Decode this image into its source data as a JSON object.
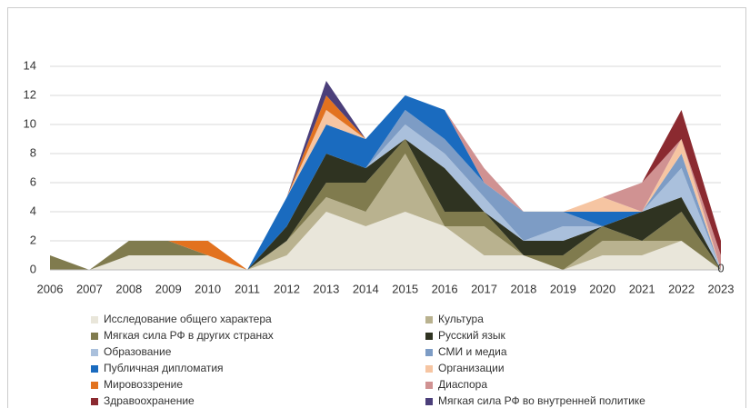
{
  "chart_data": {
    "type": "stacked_area",
    "categories": [
      "2006",
      "2007",
      "2008",
      "2009",
      "2010",
      "2011",
      "2012",
      "2013",
      "2014",
      "2015",
      "2016",
      "2017",
      "2018",
      "2019",
      "2020",
      "2021",
      "2022",
      "2023"
    ],
    "ylim": [
      0,
      14
    ],
    "yticks": [
      0,
      2,
      4,
      6,
      8,
      10,
      12,
      14
    ],
    "grid": true,
    "annotations": [
      "0"
    ],
    "series": [
      {
        "name": "Исследование общего характера",
        "color": "#e9e6da",
        "values": [
          0,
          0,
          1,
          1,
          1,
          0,
          1,
          4,
          3,
          4,
          3,
          1,
          1,
          0,
          1,
          1,
          2,
          0
        ]
      },
      {
        "name": "Культура",
        "color": "#b9b28f",
        "values": [
          0,
          0,
          0,
          0,
          0,
          0,
          1,
          1,
          1,
          4,
          0,
          2,
          0,
          0,
          1,
          1,
          0,
          0
        ]
      },
      {
        "name": "Мягкая сила РФ в других странах",
        "color": "#807b4e",
        "values": [
          1,
          0,
          1,
          1,
          0,
          0,
          0,
          1,
          2,
          1,
          1,
          1,
          0,
          1,
          1,
          0,
          2,
          0
        ]
      },
      {
        "name": "Русский язык",
        "color": "#2f3321",
        "values": [
          0,
          0,
          0,
          0,
          0,
          0,
          1,
          2,
          1,
          0,
          3,
          0,
          1,
          1,
          0,
          2,
          1,
          0
        ]
      },
      {
        "name": "Образование",
        "color": "#aac0dc",
        "values": [
          0,
          0,
          0,
          0,
          0,
          0,
          0,
          0,
          0,
          1,
          1,
          1,
          0,
          1,
          0,
          0,
          2,
          0
        ]
      },
      {
        "name": "СМИ и медиа",
        "color": "#7d9cc5",
        "values": [
          0,
          0,
          0,
          0,
          0,
          0,
          0,
          0,
          0,
          1,
          1,
          1,
          2,
          1,
          0,
          0,
          1,
          0
        ]
      },
      {
        "name": "Публичная дипломатия",
        "color": "#1a6bbf",
        "values": [
          0,
          0,
          0,
          0,
          0,
          0,
          2,
          2,
          2,
          1,
          2,
          0,
          0,
          0,
          1,
          0,
          0,
          0
        ]
      },
      {
        "name": "Организации",
        "color": "#f6c5a2",
        "values": [
          0,
          0,
          0,
          0,
          0,
          0,
          0,
          1,
          0,
          0,
          0,
          0,
          0,
          0,
          1,
          0,
          1,
          0
        ]
      },
      {
        "name": "Мировоззрение",
        "color": "#e2721f",
        "values": [
          0,
          0,
          0,
          0,
          1,
          0,
          0,
          1,
          0,
          0,
          0,
          0,
          0,
          0,
          0,
          0,
          0,
          0
        ]
      },
      {
        "name": "Диаспора",
        "color": "#d09292",
        "values": [
          0,
          0,
          0,
          0,
          0,
          0,
          0,
          0,
          0,
          0,
          0,
          1,
          0,
          0,
          0,
          2,
          0,
          1
        ]
      },
      {
        "name": "Здравоохранение",
        "color": "#8b2a30",
        "values": [
          0,
          0,
          0,
          0,
          0,
          0,
          0,
          0,
          0,
          0,
          0,
          0,
          0,
          0,
          0,
          0,
          2,
          1
        ]
      },
      {
        "name": "Мягкая сила РФ во внутренней политике",
        "color": "#4b3f7a",
        "values": [
          0,
          0,
          0,
          0,
          0,
          0,
          0,
          1,
          0,
          0,
          0,
          0,
          0,
          0,
          0,
          0,
          0,
          0
        ]
      }
    ]
  }
}
